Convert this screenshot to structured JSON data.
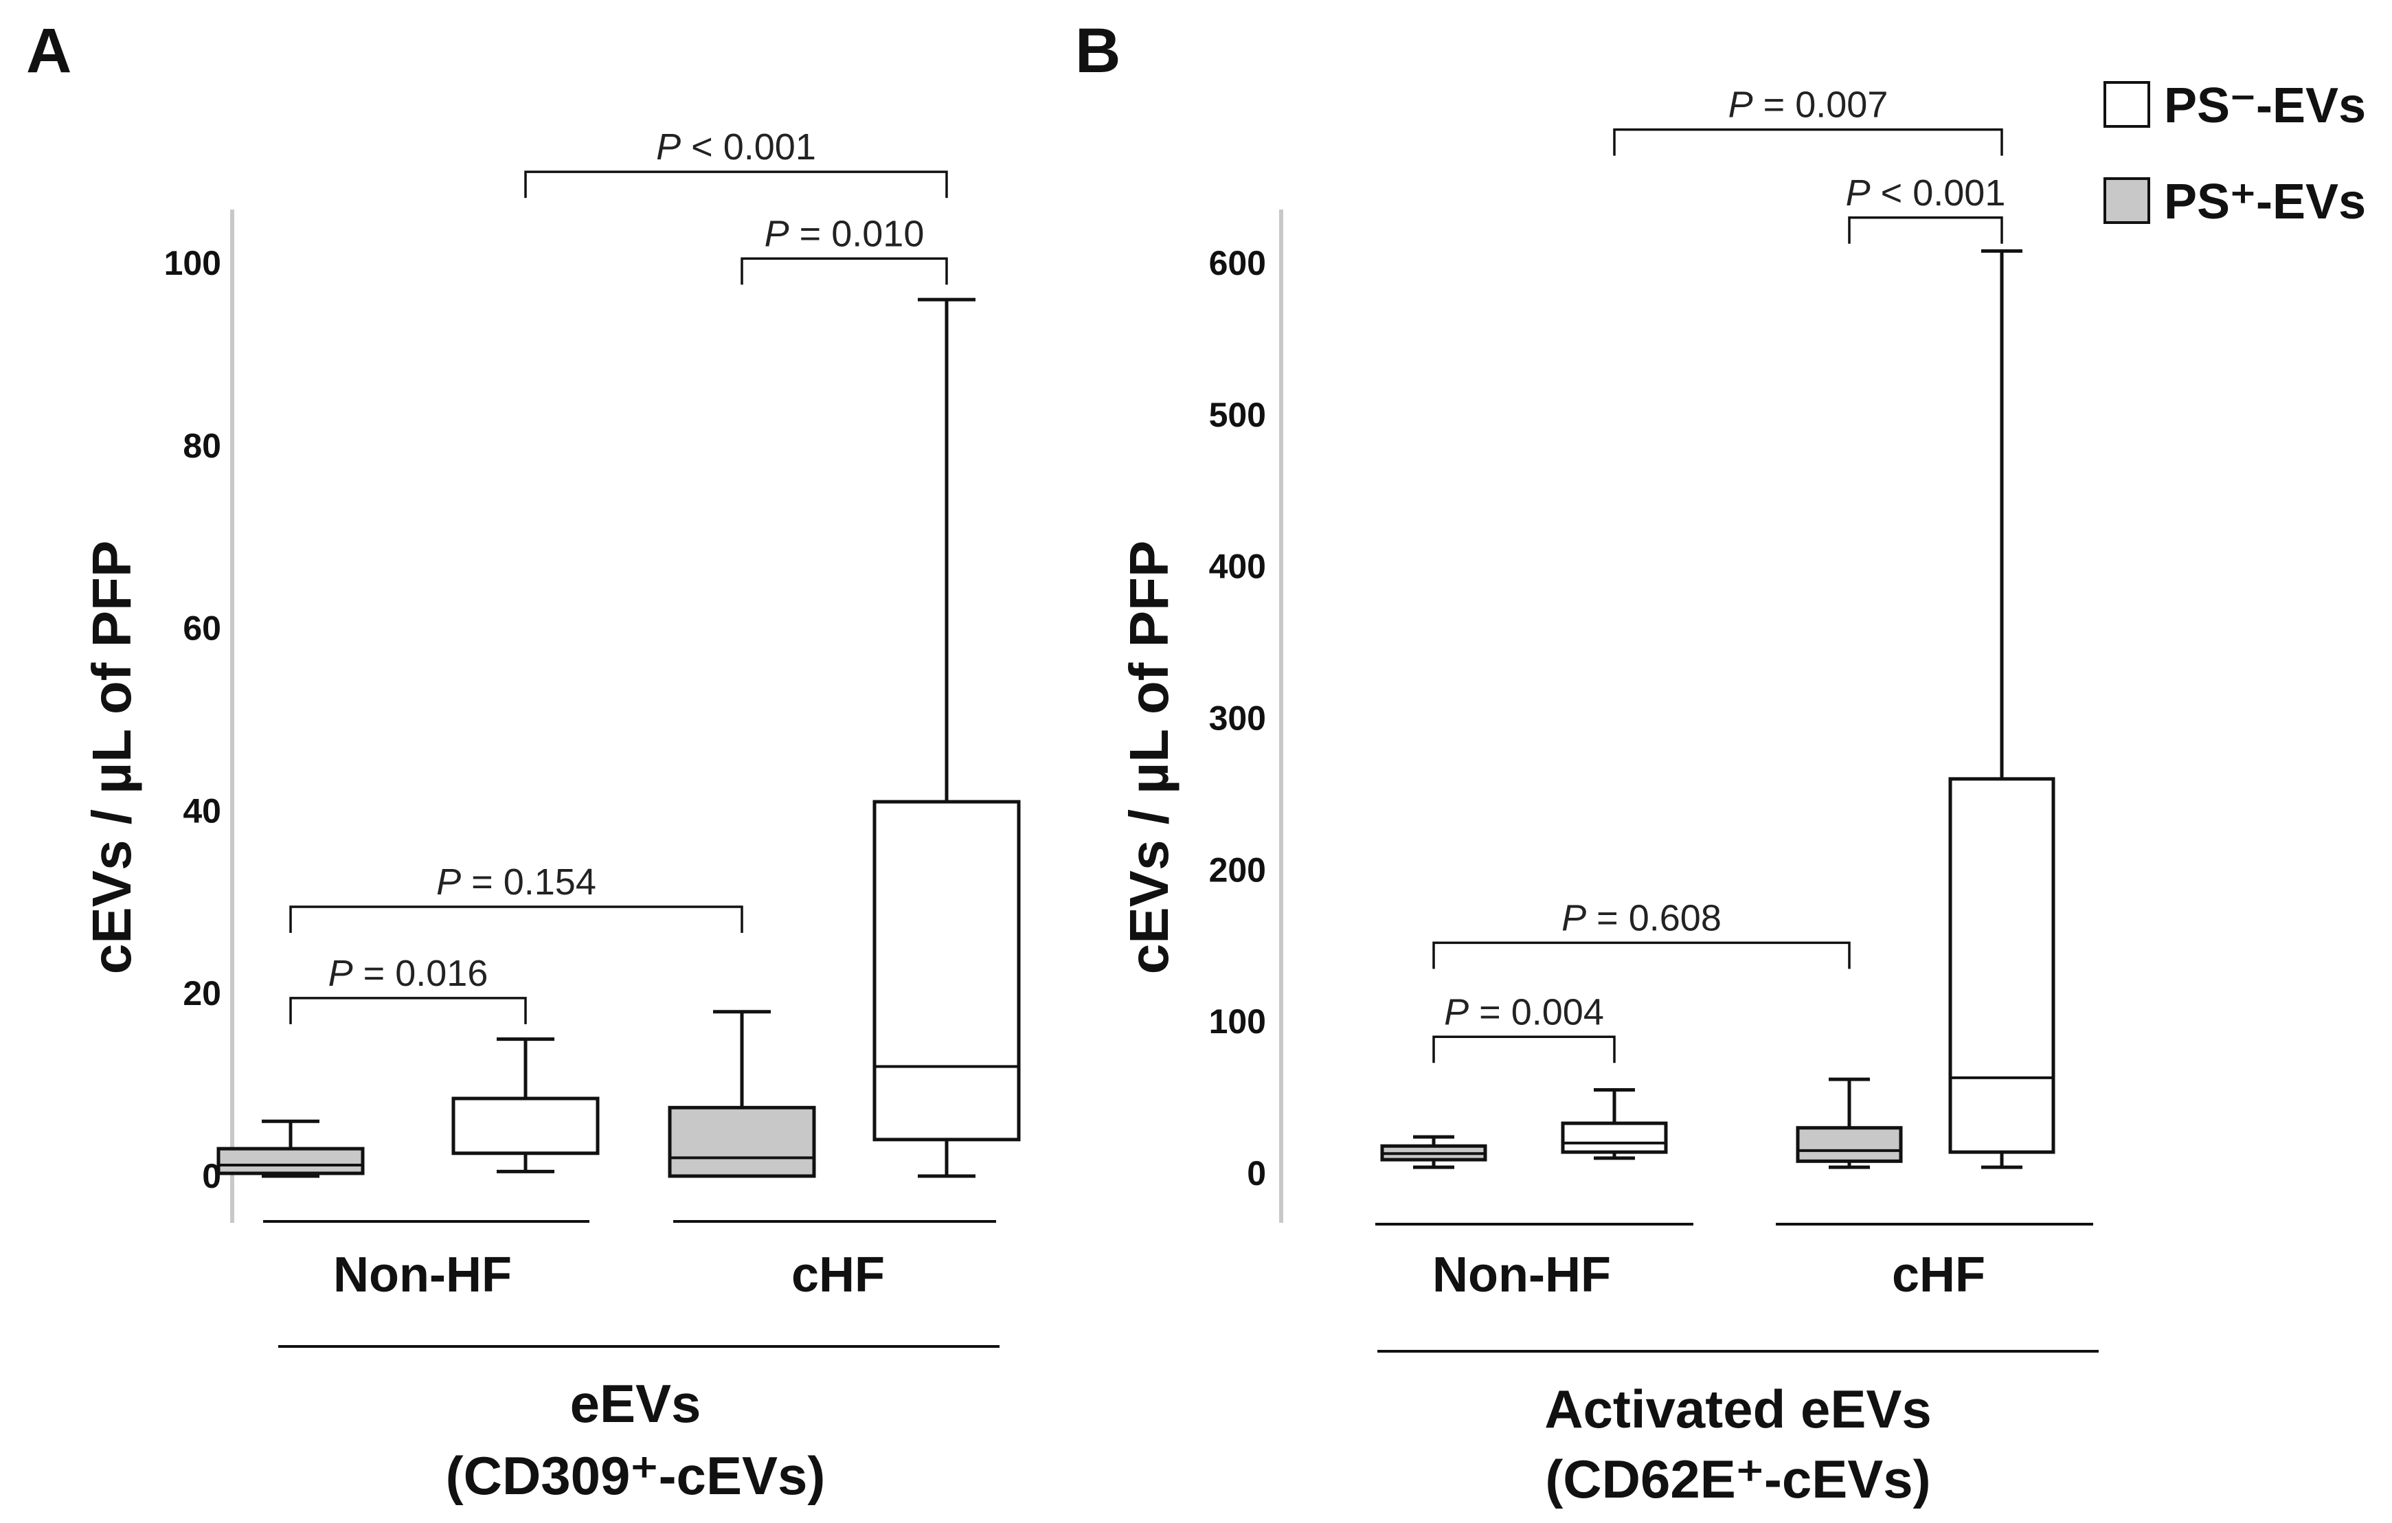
{
  "legend": [
    {
      "label": "PS⁻-EVs",
      "color": "#ffffff"
    },
    {
      "label": "PS⁺-EVs",
      "color": "#c8c8c8"
    }
  ],
  "chart_data": [
    {
      "type": "box",
      "panel_label": "A",
      "ylabel": "cEVs / µL of PFP",
      "ylim": [
        0,
        100
      ],
      "yticks": [
        0,
        20,
        40,
        60,
        80,
        100
      ],
      "categories": [
        "Non-HF",
        "cHF"
      ],
      "xtitle": [
        "eEVs",
        "(CD309⁺-cEVs)"
      ],
      "series": [
        {
          "name": "PS⁺-EVs",
          "color": "#c8c8c8",
          "boxes": [
            {
              "category": "Non-HF",
              "whisker_low": 0,
              "q1": 0.3,
              "median": 1.2,
              "q3": 3,
              "whisker_high": 6
            },
            {
              "category": "cHF",
              "whisker_low": 0,
              "q1": 0,
              "median": 2,
              "q3": 7.5,
              "whisker_high": 18
            }
          ]
        },
        {
          "name": "PS⁻-EVs",
          "color": "#ffffff",
          "boxes": [
            {
              "category": "Non-HF",
              "whisker_low": 0.5,
              "q1": 2.5,
              "median": 2.5,
              "q3": 8.5,
              "whisker_high": 15
            },
            {
              "category": "cHF",
              "whisker_low": 0,
              "q1": 4,
              "median": 12,
              "q3": 41,
              "whisker_high": 96
            }
          ]
        }
      ],
      "comparisons": [
        {
          "label_p": "P",
          "label_rest": " < 0.001",
          "from": "Non-HF PS⁻-EVs",
          "to": "cHF PS⁻-EVs",
          "y": 110
        },
        {
          "label_p": "P",
          "label_rest": " = 0.010",
          "from": "cHF PS⁺-EVs",
          "to": "cHF PS⁻-EVs",
          "y": 100.5
        },
        {
          "label_p": "P",
          "label_rest": " = 0.154",
          "from": "Non-HF PS⁺-EVs",
          "to": "cHF PS⁺-EVs",
          "y": 29.5
        },
        {
          "label_p": "P",
          "label_rest": " = 0.016",
          "from": "Non-HF PS⁺-EVs",
          "to": "Non-HF PS⁻-EVs",
          "y": 19.5
        }
      ]
    },
    {
      "type": "box",
      "panel_label": "B",
      "ylabel": "cEVs / µL of PFP",
      "ylim": [
        0,
        600
      ],
      "yticks": [
        0,
        100,
        200,
        300,
        400,
        500,
        600
      ],
      "categories": [
        "Non-HF",
        "cHF"
      ],
      "xtitle": [
        "Activated eEVs",
        "(CD62E⁺-cEVs)"
      ],
      "series": [
        {
          "name": "PS⁺-EVs",
          "color": "#c8c8c8",
          "boxes": [
            {
              "category": "Non-HF",
              "whisker_low": 4,
              "q1": 9,
              "median": 13,
              "q3": 18,
              "whisker_high": 24
            },
            {
              "category": "cHF",
              "whisker_low": 4,
              "q1": 8,
              "median": 15,
              "q3": 30,
              "whisker_high": 62
            }
          ]
        },
        {
          "name": "PS⁻-EVs",
          "color": "#ffffff",
          "boxes": [
            {
              "category": "Non-HF",
              "whisker_low": 10,
              "q1": 14,
              "median": 20,
              "q3": 33,
              "whisker_high": 55
            },
            {
              "category": "cHF",
              "whisker_low": 4,
              "q1": 14,
              "median": 63,
              "q3": 260,
              "whisker_high": 608
            }
          ]
        }
      ],
      "comparisons": [
        {
          "label_p": "P",
          "label_rest": " = 0.007",
          "from": "Non-HF PS⁻-EVs",
          "to": "cHF PS⁻-EVs",
          "y": 688
        },
        {
          "label_p": "P",
          "label_rest": " < 0.001",
          "from": "cHF PS⁺-EVs",
          "to": "cHF PS⁻-EVs",
          "y": 630
        },
        {
          "label_p": "P",
          "label_rest": " = 0.608",
          "from": "Non-HF PS⁺-EVs",
          "to": "cHF PS⁺-EVs",
          "y": 152
        },
        {
          "label_p": "P",
          "label_rest": " = 0.004",
          "from": "Non-HF PS⁺-EVs",
          "to": "Non-HF PS⁻-EVs",
          "y": 90
        }
      ]
    }
  ]
}
